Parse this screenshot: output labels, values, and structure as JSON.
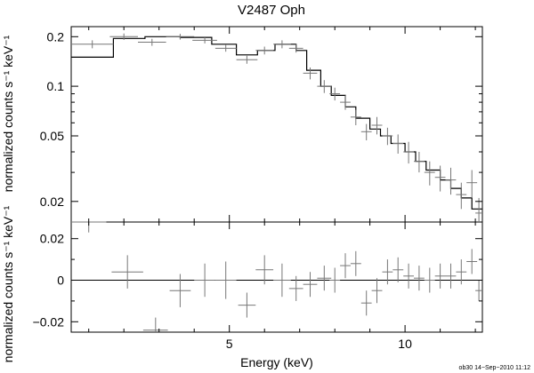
{
  "chart_data": {
    "type": "line",
    "title": "V2487 Oph",
    "xlabel": "Energy (keV)",
    "ylabel_upper": "normalized counts s⁻¹ keV⁻¹",
    "ylabel_lower": "normalized counts s⁻¹ keV⁻¹",
    "xlim": [
      0.5,
      12.2
    ],
    "x_ticks": [
      5,
      10
    ],
    "x_tick_labels": [
      "5",
      "10"
    ],
    "upper": {
      "yscale": "log",
      "ylim": [
        0.015,
        0.23
      ],
      "y_ticks": [
        0.02,
        0.05,
        0.1,
        0.2
      ],
      "y_tick_labels": [
        "0.02",
        "0.05",
        "0.1",
        "0.2"
      ],
      "model_step": {
        "edges": [
          0.5,
          1.7,
          2.6,
          3.6,
          4.5,
          5.2,
          5.8,
          6.3,
          6.9,
          7.2,
          7.6,
          7.9,
          8.3,
          8.6,
          9.0,
          9.3,
          9.6,
          10.0,
          10.3,
          10.6,
          11.0,
          11.3,
          11.6,
          11.9,
          12.2
        ],
        "values": [
          0.15,
          0.195,
          0.2,
          0.198,
          0.18,
          0.155,
          0.165,
          0.18,
          0.165,
          0.125,
          0.1,
          0.088,
          0.075,
          0.064,
          0.055,
          0.05,
          0.045,
          0.04,
          0.035,
          0.031,
          0.027,
          0.024,
          0.021,
          0.018
        ]
      },
      "data_points": {
        "x": [
          1.1,
          2.0,
          2.8,
          3.6,
          4.3,
          4.9,
          5.5,
          6.0,
          6.5,
          6.9,
          7.3,
          7.7,
          8.0,
          8.3,
          8.6,
          8.9,
          9.2,
          9.5,
          9.8,
          10.1,
          10.4,
          10.7,
          11.0,
          11.3,
          11.6,
          11.9,
          12.1
        ],
        "y": [
          0.18,
          0.2,
          0.185,
          0.2,
          0.19,
          0.17,
          0.145,
          0.165,
          0.18,
          0.17,
          0.12,
          0.1,
          0.09,
          0.08,
          0.065,
          0.053,
          0.058,
          0.05,
          0.045,
          0.04,
          0.035,
          0.03,
          0.028,
          0.027,
          0.022,
          0.026,
          0.017
        ],
        "xerr": [
          0.6,
          0.4,
          0.4,
          0.4,
          0.35,
          0.3,
          0.3,
          0.25,
          0.25,
          0.2,
          0.2,
          0.2,
          0.15,
          0.15,
          0.15,
          0.15,
          0.15,
          0.15,
          0.15,
          0.15,
          0.15,
          0.15,
          0.15,
          0.15,
          0.15,
          0.15,
          0.1
        ],
        "yerr": [
          0.01,
          0.009,
          0.009,
          0.008,
          0.008,
          0.008,
          0.008,
          0.009,
          0.01,
          0.01,
          0.01,
          0.009,
          0.008,
          0.008,
          0.007,
          0.006,
          0.007,
          0.006,
          0.006,
          0.006,
          0.005,
          0.005,
          0.005,
          0.005,
          0.004,
          0.005,
          0.004
        ]
      }
    },
    "lower": {
      "yscale": "linear",
      "ylim": [
        -0.025,
        0.028
      ],
      "y_ticks": [
        -0.02,
        0,
        0.02
      ],
      "y_tick_labels": [
        "−0.02",
        "0",
        "0.02"
      ],
      "zero_line": 0,
      "residuals": {
        "x": [
          1.0,
          2.1,
          2.9,
          3.6,
          4.3,
          4.9,
          5.5,
          6.0,
          6.5,
          6.9,
          7.3,
          7.7,
          8.0,
          8.3,
          8.6,
          8.9,
          9.2,
          9.5,
          9.8,
          10.1,
          10.4,
          10.7,
          11.0,
          11.3,
          11.6,
          11.9,
          12.1
        ],
        "y": [
          0.028,
          0.004,
          -0.024,
          -0.005,
          0.0,
          -0.0,
          -0.012,
          0.005,
          0.0,
          -0.004,
          -0.002,
          0.001,
          0.0,
          0.007,
          0.008,
          -0.011,
          -0.005,
          0.004,
          0.005,
          0.002,
          0.001,
          0.0,
          0.002,
          0.002,
          0.004,
          0.009,
          -0.005
        ],
        "xerr": [
          0.5,
          0.45,
          0.35,
          0.3,
          0.3,
          0.3,
          0.25,
          0.25,
          0.25,
          0.2,
          0.2,
          0.2,
          0.15,
          0.15,
          0.15,
          0.15,
          0.15,
          0.15,
          0.15,
          0.15,
          0.15,
          0.15,
          0.15,
          0.15,
          0.15,
          0.15,
          0.1
        ],
        "yerr": [
          0.005,
          0.008,
          0.006,
          0.008,
          0.008,
          0.009,
          0.006,
          0.007,
          0.008,
          0.006,
          0.006,
          0.006,
          0.006,
          0.006,
          0.006,
          0.006,
          0.006,
          0.006,
          0.006,
          0.006,
          0.006,
          0.006,
          0.006,
          0.006,
          0.006,
          0.006,
          0.005
        ]
      }
    },
    "footer": "ob30 14−Sep−2010 11:12"
  }
}
